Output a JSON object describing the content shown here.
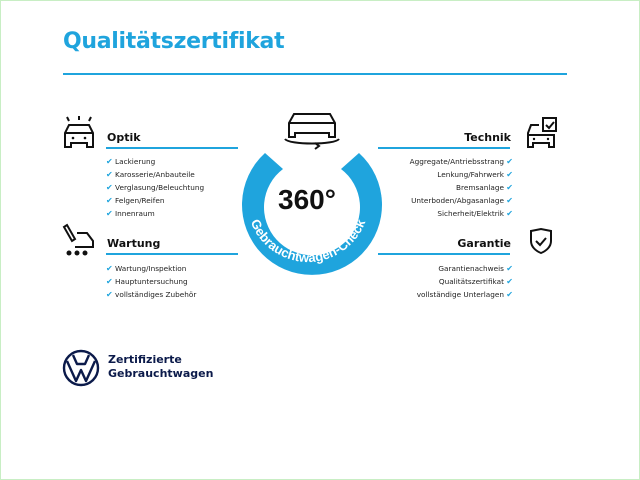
{
  "title": "Qualitätszertifikat",
  "center": {
    "number": "360°",
    "ring_text": "Gebrauchtwagen-Check",
    "color": "#1fa4dd"
  },
  "sections": {
    "optik": {
      "heading": "Optik",
      "icon": "car-lights-icon",
      "items": [
        "Lackierung",
        "Karosserie/Anbauteile",
        "Verglasung/Beleuchtung",
        "Felgen/Reifen",
        "Innenraum"
      ]
    },
    "wartung": {
      "heading": "Wartung",
      "icon": "maintenance-van-icon",
      "items": [
        "Wartung/Inspektion",
        "Hauptuntersuchung",
        "vollständiges Zubehör"
      ]
    },
    "technik": {
      "heading": "Technik",
      "icon": "car-checkbox-icon",
      "items": [
        "Aggregate/Antriebsstrang",
        "Lenkung/Fahrwerk",
        "Bremsanlage",
        "Unterboden/Abgasanlage",
        "Sicherheit/Elektrik"
      ]
    },
    "garantie": {
      "heading": "Garantie",
      "icon": "shield-check-icon",
      "items": [
        "Garantienachweis",
        "Qualitätszertifikat",
        "vollständige Unterlagen"
      ]
    }
  },
  "check_mark": "✔",
  "brand": {
    "line1": "Zertifizierte",
    "line2": "Gebrauchtwagen",
    "logo": "vw-logo"
  }
}
